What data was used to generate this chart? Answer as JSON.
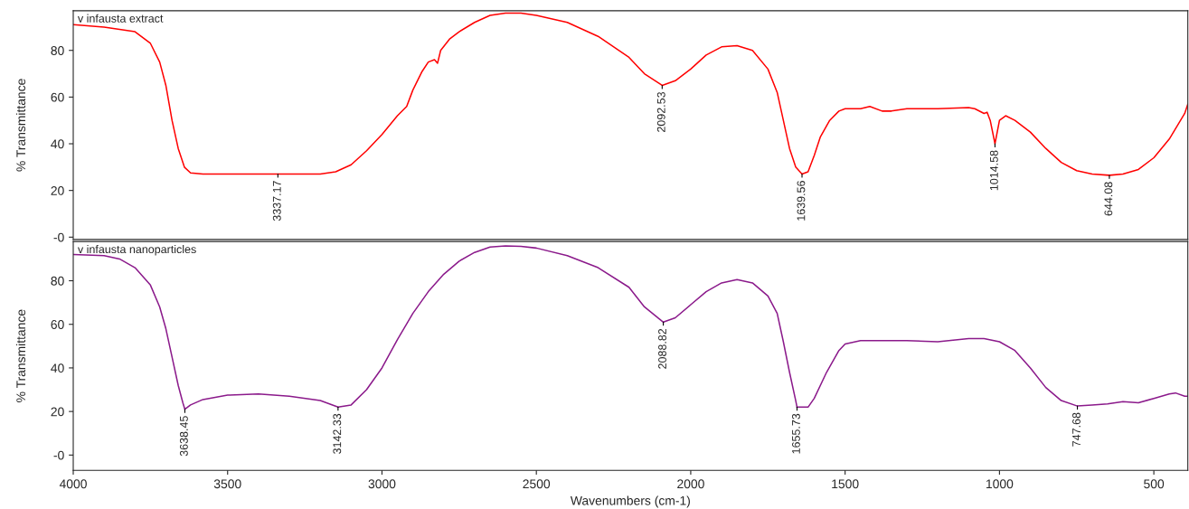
{
  "chart_data": [
    {
      "type": "line",
      "title": "v infausta extract",
      "ylabel": "% Transmittance",
      "xlim": [
        4000,
        390
      ],
      "ylim": [
        -1,
        97
      ],
      "yticks": [
        {
          "value": 0,
          "label": "-0"
        },
        20,
        40,
        60,
        80
      ],
      "tick_labels": "y",
      "grid": false,
      "legend": false,
      "series": [
        {
          "color": "#ff0000",
          "x": [
            4000,
            3900,
            3800,
            3750,
            3720,
            3700,
            3680,
            3660,
            3640,
            3620,
            3580,
            3500,
            3337,
            3200,
            3150,
            3100,
            3050,
            3000,
            2950,
            2920,
            2900,
            2870,
            2850,
            2830,
            2820,
            2810,
            2780,
            2750,
            2700,
            2650,
            2600,
            2550,
            2500,
            2400,
            2300,
            2200,
            2150,
            2092.53,
            2050,
            2000,
            1950,
            1900,
            1850,
            1800,
            1750,
            1720,
            1700,
            1680,
            1660,
            1639.56,
            1620,
            1600,
            1580,
            1550,
            1520,
            1500,
            1450,
            1420,
            1380,
            1350,
            1300,
            1200,
            1100,
            1080,
            1050,
            1040,
            1030,
            1014.58,
            1000,
            980,
            950,
            900,
            850,
            800,
            750,
            700,
            644.08,
            600,
            550,
            500,
            450,
            400,
            390
          ],
          "values": [
            91,
            90,
            88,
            83,
            75,
            65,
            50,
            38,
            30,
            27.5,
            27,
            27,
            27,
            27,
            28,
            31,
            37,
            44,
            52,
            56,
            63,
            71,
            75,
            76,
            74.5,
            80,
            85,
            88,
            92,
            95,
            96,
            96,
            95,
            92,
            86,
            77,
            70,
            65,
            67,
            72,
            78,
            81.5,
            82,
            80,
            72,
            62,
            50,
            38,
            30,
            27,
            28,
            35,
            43,
            50,
            54,
            55,
            55,
            56,
            54,
            54,
            55,
            55,
            55.5,
            55,
            53,
            53.5,
            50,
            40,
            50,
            52,
            50,
            45,
            38,
            32,
            28.5,
            27,
            26.5,
            27,
            29,
            34,
            42,
            53,
            57
          ]
        }
      ],
      "annotations": [
        {
          "text": "3337.17",
          "x": 3337.17,
          "y": 27
        },
        {
          "text": "2092.53",
          "x": 2092.53,
          "y": 65
        },
        {
          "text": "1639.56",
          "x": 1639.56,
          "y": 27
        },
        {
          "text": "1014.58",
          "x": 1014.58,
          "y": 40
        },
        {
          "text": "644.08",
          "x": 644.08,
          "y": 26.5
        }
      ]
    },
    {
      "type": "line",
      "title": "v infausta nanoparticles",
      "xlabel": "Wavenumbers (cm-1)",
      "ylabel": "% Transmittance",
      "xlim": [
        4000,
        390
      ],
      "ylim": [
        -7,
        98
      ],
      "xticks": [
        4000,
        3500,
        3000,
        2500,
        2000,
        1500,
        1000,
        500
      ],
      "yticks": [
        {
          "value": 0,
          "label": "-0"
        },
        20,
        40,
        60,
        80
      ],
      "grid": false,
      "legend": false,
      "series": [
        {
          "color": "#8b1a8b",
          "x": [
            4000,
            3900,
            3850,
            3800,
            3750,
            3720,
            3700,
            3680,
            3660,
            3645,
            3638.45,
            3620,
            3580,
            3500,
            3400,
            3300,
            3200,
            3142.33,
            3100,
            3050,
            3000,
            2950,
            2900,
            2850,
            2800,
            2750,
            2700,
            2650,
            2600,
            2550,
            2500,
            2400,
            2300,
            2200,
            2150,
            2088.82,
            2050,
            2000,
            1950,
            1900,
            1850,
            1800,
            1750,
            1720,
            1700,
            1680,
            1660,
            1655.73,
            1620,
            1600,
            1560,
            1520,
            1500,
            1450,
            1300,
            1200,
            1100,
            1050,
            1000,
            950,
            900,
            850,
            800,
            747.68,
            700,
            650,
            600,
            550,
            500,
            450,
            430,
            400,
            390
          ],
          "values": [
            92,
            91.5,
            90,
            86,
            78,
            68,
            58,
            45,
            32,
            24,
            21,
            23,
            25.5,
            27.5,
            28,
            27,
            25,
            22,
            23,
            30,
            40,
            53,
            65,
            75,
            83,
            89,
            93,
            95.5,
            96,
            95.8,
            95,
            91.5,
            86,
            77,
            68,
            61,
            63,
            69,
            75,
            79,
            80.5,
            79,
            73,
            65,
            52,
            38,
            25,
            22,
            22,
            26,
            38,
            48,
            51,
            52.5,
            52.5,
            52,
            53.5,
            53.5,
            52,
            48,
            40,
            31,
            25,
            22.5,
            23,
            23.5,
            24.5,
            24,
            26,
            28,
            28.5,
            27,
            27
          ]
        }
      ],
      "annotations": [
        {
          "text": "3638.45",
          "x": 3638.45,
          "y": 21
        },
        {
          "text": "3142.33",
          "x": 3142.33,
          "y": 22
        },
        {
          "text": "2088.82",
          "x": 2088.82,
          "y": 61
        },
        {
          "text": "1655.73",
          "x": 1655.73,
          "y": 22
        },
        {
          "text": "747.68",
          "x": 747.68,
          "y": 22.5
        }
      ]
    }
  ]
}
